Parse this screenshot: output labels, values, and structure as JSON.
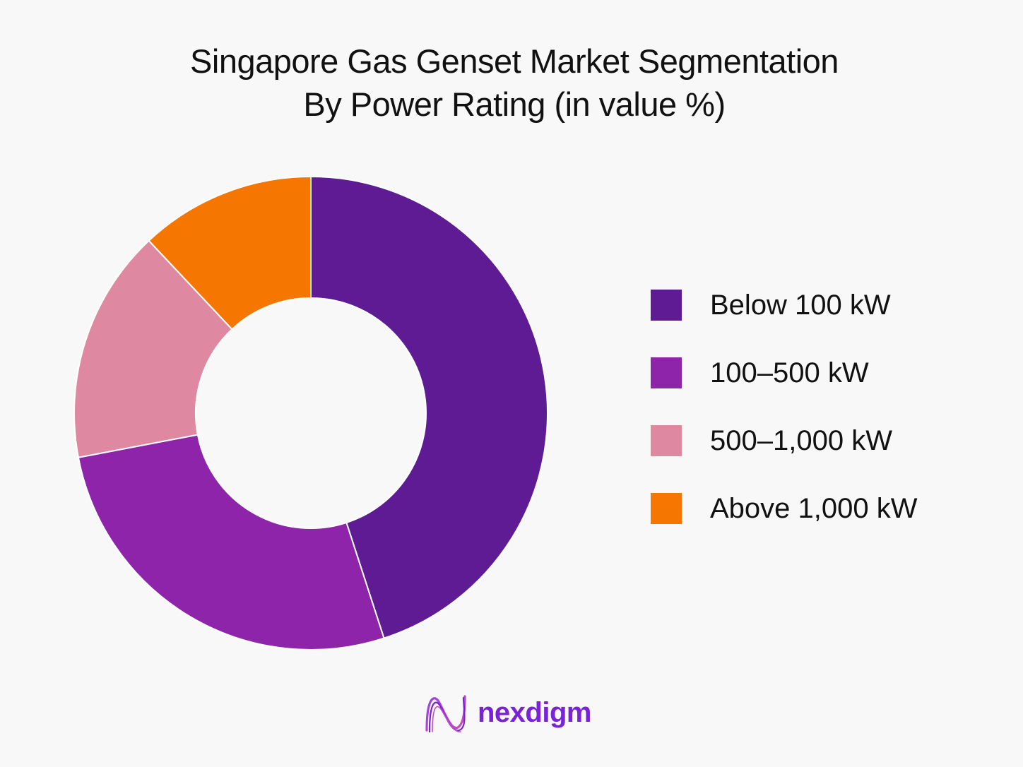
{
  "chart_data": {
    "type": "pie",
    "variant": "donut",
    "title_lines": [
      "Singapore Gas Genset Market Segmentation",
      "By Power Rating (in value %)"
    ],
    "series": [
      {
        "name": "Below 100 kW",
        "value": 45,
        "color": "#5e1b94"
      },
      {
        "name": "100–500 kW",
        "value": 27,
        "color": "#8e24aa"
      },
      {
        "name": "500–1,000 kW",
        "value": 16,
        "color": "#de89a1"
      },
      {
        "name": "Above 1,000 kW",
        "value": 12,
        "color": "#f57600"
      }
    ],
    "legend_position": "right",
    "start_angle": "top, clockwise"
  },
  "brand": {
    "name": "nexdigm",
    "logo_icon": "nexdigm-wave-icon",
    "color": "#7a22d6"
  }
}
